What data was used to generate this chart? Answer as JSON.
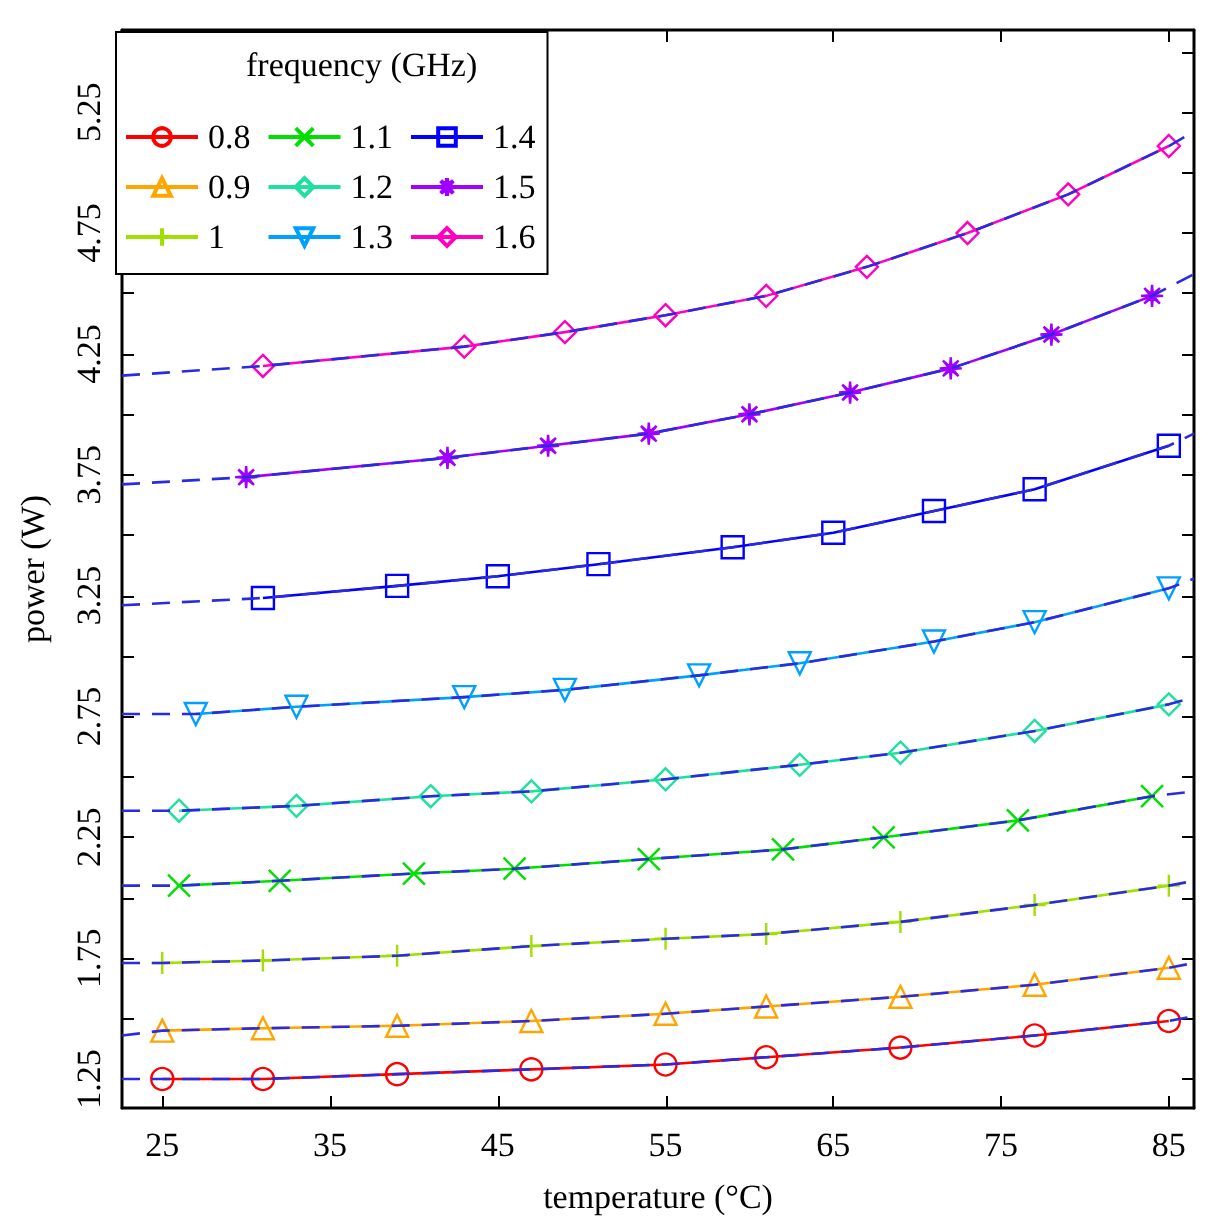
{
  "chart_data": {
    "type": "line",
    "xlabel": "temperature (°C)",
    "ylabel": "power (W)",
    "legend_title": "frequency (GHz)",
    "legend": "top left",
    "grid": false,
    "xlim": [
      22.6,
      86.5
    ],
    "xticks": [
      25,
      35,
      45,
      55,
      65,
      75,
      85
    ],
    "ylim": [
      1.13,
      5.59
    ],
    "yticks": [
      1.25,
      {
        "value": 1.5,
        "label": null
      },
      1.75,
      {
        "value": 2.0,
        "label": null
      },
      2.25,
      {
        "value": 2.5,
        "label": null
      },
      2.75,
      {
        "value": 3.0,
        "label": null
      },
      3.25,
      {
        "value": 3.5,
        "label": null
      },
      3.75,
      {
        "value": 4.0,
        "label": null
      },
      4.25,
      {
        "value": 4.5,
        "label": null
      },
      4.75,
      {
        "value": 5.0,
        "label": null
      },
      5.25,
      {
        "value": 5.5,
        "label": null
      }
    ],
    "series": [
      {
        "name": "0.8",
        "color": "#ff0000",
        "marker": "circle",
        "line_style": "solid",
        "x": [
          25,
          31,
          39,
          47,
          55,
          61,
          69,
          77,
          85
        ],
        "values": [
          1.25,
          1.25,
          1.27,
          1.29,
          1.31,
          1.34,
          1.38,
          1.43,
          1.49
        ]
      },
      {
        "name": "0.9",
        "color": "#ffa500",
        "marker": "triangle",
        "line_style": "solid",
        "x": [
          25,
          31,
          39,
          47,
          55,
          61,
          69,
          77,
          85
        ],
        "values": [
          1.45,
          1.46,
          1.47,
          1.49,
          1.52,
          1.55,
          1.59,
          1.64,
          1.71
        ]
      },
      {
        "name": "1",
        "color": "#a0e000",
        "marker": "plus",
        "line_style": "solid",
        "x": [
          25,
          31,
          39,
          47,
          55,
          61,
          69,
          77,
          85
        ],
        "values": [
          1.73,
          1.74,
          1.76,
          1.8,
          1.83,
          1.85,
          1.9,
          1.97,
          2.05
        ]
      },
      {
        "name": "1.1",
        "color": "#00e000",
        "marker": "cross",
        "line_style": "solid",
        "x": [
          26,
          32,
          40,
          46,
          54,
          62,
          68,
          76,
          84
        ],
        "values": [
          2.05,
          2.07,
          2.1,
          2.12,
          2.16,
          2.2,
          2.25,
          2.32,
          2.42
        ]
      },
      {
        "name": "1.2",
        "color": "#20e0a0",
        "marker": "diamond",
        "line_style": "solid",
        "x": [
          26,
          33,
          41,
          47,
          55,
          63,
          69,
          77,
          85
        ],
        "values": [
          2.36,
          2.38,
          2.42,
          2.44,
          2.49,
          2.55,
          2.6,
          2.69,
          2.8
        ]
      },
      {
        "name": "1.3",
        "color": "#00a0ff",
        "marker": "triangle-down",
        "line_style": "solid",
        "x": [
          27,
          33,
          43,
          49,
          57,
          63,
          71,
          77,
          85
        ],
        "values": [
          2.76,
          2.79,
          2.83,
          2.86,
          2.92,
          2.97,
          3.06,
          3.14,
          3.28
        ]
      },
      {
        "name": "1.4",
        "color": "#0000ff",
        "marker": "square",
        "line_style": "solid",
        "x": [
          31,
          39,
          45,
          51,
          59,
          65,
          71,
          77,
          85
        ],
        "values": [
          3.24,
          3.29,
          3.33,
          3.38,
          3.45,
          3.51,
          3.6,
          3.69,
          3.87
        ]
      },
      {
        "name": "1.5",
        "color": "#a000ff",
        "marker": "star",
        "line_style": "solid",
        "x": [
          30,
          42,
          48,
          54,
          60,
          66,
          72,
          78,
          84
        ],
        "values": [
          3.74,
          3.82,
          3.87,
          3.92,
          4.0,
          4.09,
          4.19,
          4.33,
          4.49
        ]
      },
      {
        "name": "1.6",
        "color": "#ff00c0",
        "marker": "diamond",
        "line_style": "solid",
        "x": [
          31,
          43,
          49,
          55,
          61,
          67,
          73,
          79,
          85
        ],
        "values": [
          4.2,
          4.28,
          4.34,
          4.41,
          4.49,
          4.61,
          4.75,
          4.91,
          5.11
        ]
      },
      {
        "color": "#2a2ae0",
        "marker": "none",
        "line_style": "dashed",
        "x": [
          22.6,
          25,
          31,
          39,
          47,
          55,
          61,
          69,
          77,
          85,
          86.5
        ],
        "values": [
          1.25,
          1.25,
          1.25,
          1.27,
          1.29,
          1.31,
          1.34,
          1.38,
          1.43,
          1.49,
          1.51
        ]
      },
      {
        "color": "#2a2ae0",
        "marker": "none",
        "line_style": "dashed",
        "x": [
          22.6,
          25,
          31,
          39,
          47,
          55,
          61,
          69,
          77,
          85,
          86.5
        ],
        "values": [
          1.43,
          1.45,
          1.46,
          1.47,
          1.49,
          1.52,
          1.55,
          1.59,
          1.64,
          1.71,
          1.73
        ]
      },
      {
        "color": "#2a2ae0",
        "marker": "none",
        "line_style": "dashed",
        "x": [
          22.6,
          25,
          31,
          39,
          47,
          55,
          61,
          69,
          77,
          85,
          86.5
        ],
        "values": [
          1.73,
          1.73,
          1.74,
          1.76,
          1.8,
          1.83,
          1.85,
          1.9,
          1.97,
          2.05,
          2.07
        ]
      },
      {
        "color": "#2a2ae0",
        "marker": "none",
        "line_style": "dashed",
        "x": [
          22.6,
          26,
          32,
          40,
          46,
          54,
          62,
          68,
          76,
          84,
          86.5
        ],
        "values": [
          2.05,
          2.05,
          2.07,
          2.1,
          2.12,
          2.16,
          2.2,
          2.25,
          2.32,
          2.42,
          2.44
        ]
      },
      {
        "color": "#2a2ae0",
        "marker": "none",
        "line_style": "dashed",
        "x": [
          22.6,
          26,
          33,
          41,
          47,
          55,
          63,
          69,
          77,
          85,
          86.5
        ],
        "values": [
          2.36,
          2.36,
          2.38,
          2.42,
          2.44,
          2.49,
          2.55,
          2.6,
          2.69,
          2.8,
          2.83
        ]
      },
      {
        "color": "#2a2ae0",
        "marker": "none",
        "line_style": "dashed",
        "x": [
          22.6,
          27,
          33,
          43,
          49,
          57,
          63,
          71,
          77,
          85,
          86.5
        ],
        "values": [
          2.76,
          2.76,
          2.79,
          2.83,
          2.86,
          2.92,
          2.97,
          3.06,
          3.14,
          3.28,
          3.32
        ]
      },
      {
        "color": "#2a2ae0",
        "marker": "none",
        "line_style": "dashed",
        "x": [
          22.6,
          31,
          39,
          45,
          51,
          59,
          65,
          71,
          77,
          85,
          86.5
        ],
        "values": [
          3.21,
          3.24,
          3.29,
          3.33,
          3.38,
          3.45,
          3.51,
          3.6,
          3.69,
          3.87,
          3.92
        ]
      },
      {
        "color": "#2a2ae0",
        "marker": "none",
        "line_style": "dashed",
        "x": [
          22.6,
          30,
          42,
          48,
          54,
          60,
          66,
          72,
          78,
          84,
          86.5
        ],
        "values": [
          3.71,
          3.74,
          3.82,
          3.87,
          3.92,
          4.0,
          4.09,
          4.19,
          4.33,
          4.49,
          4.58
        ]
      },
      {
        "color": "#2a2ae0",
        "marker": "none",
        "line_style": "dashed",
        "x": [
          22.6,
          31,
          43,
          49,
          55,
          61,
          67,
          73,
          79,
          85,
          86.5
        ],
        "values": [
          4.16,
          4.2,
          4.28,
          4.34,
          4.41,
          4.49,
          4.61,
          4.75,
          4.91,
          5.11,
          5.17
        ]
      }
    ]
  }
}
